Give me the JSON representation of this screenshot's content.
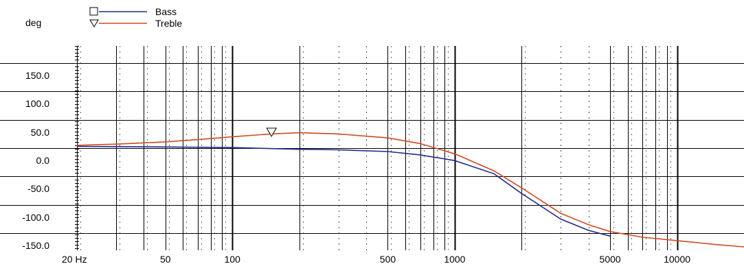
{
  "chart_data": {
    "type": "line",
    "title": "",
    "ylabel": "deg",
    "xlabel": "",
    "x_scale": "log",
    "xlim": [
      20,
      20000
    ],
    "ylim": [
      -180,
      180
    ],
    "grid": true,
    "legend_position": "top-left",
    "yticks": [
      150,
      100,
      50,
      0,
      -50,
      -100,
      -150
    ],
    "ytick_labels": [
      "150.0",
      "100.0",
      "50.0",
      "0.0",
      "-50.0",
      "-100.0",
      "-150.0"
    ],
    "xticks": [
      20,
      50,
      100,
      500,
      1000,
      5000,
      10000
    ],
    "xtick_labels": [
      "20 Hz",
      "50",
      "100",
      "500",
      "1000",
      "5000",
      "10000"
    ],
    "series": [
      {
        "name": "Bass",
        "color": "#1f2a8a",
        "marker": "square",
        "points": [
          [
            20,
            3
          ],
          [
            50,
            2
          ],
          [
            100,
            1
          ],
          [
            200,
            -2
          ],
          [
            300,
            -3
          ],
          [
            500,
            -6
          ],
          [
            700,
            -12
          ],
          [
            1000,
            -22
          ],
          [
            1500,
            -45
          ],
          [
            2000,
            -80
          ],
          [
            3000,
            -125
          ],
          [
            4000,
            -145
          ],
          [
            5000,
            -155
          ]
        ]
      },
      {
        "name": "Treble",
        "color": "#d04a1e",
        "marker": "triangle",
        "marker_at": [
          150,
          28
        ],
        "points": [
          [
            20,
            5
          ],
          [
            30,
            7
          ],
          [
            50,
            11
          ],
          [
            70,
            15
          ],
          [
            100,
            20
          ],
          [
            150,
            25
          ],
          [
            200,
            27
          ],
          [
            300,
            25
          ],
          [
            500,
            18
          ],
          [
            700,
            8
          ],
          [
            1000,
            -10
          ],
          [
            1500,
            -40
          ],
          [
            2000,
            -70
          ],
          [
            3000,
            -115
          ],
          [
            4000,
            -135
          ],
          [
            5000,
            -147
          ],
          [
            7000,
            -157
          ],
          [
            10000,
            -163
          ],
          [
            15000,
            -170
          ],
          [
            20000,
            -174
          ]
        ]
      }
    ]
  }
}
